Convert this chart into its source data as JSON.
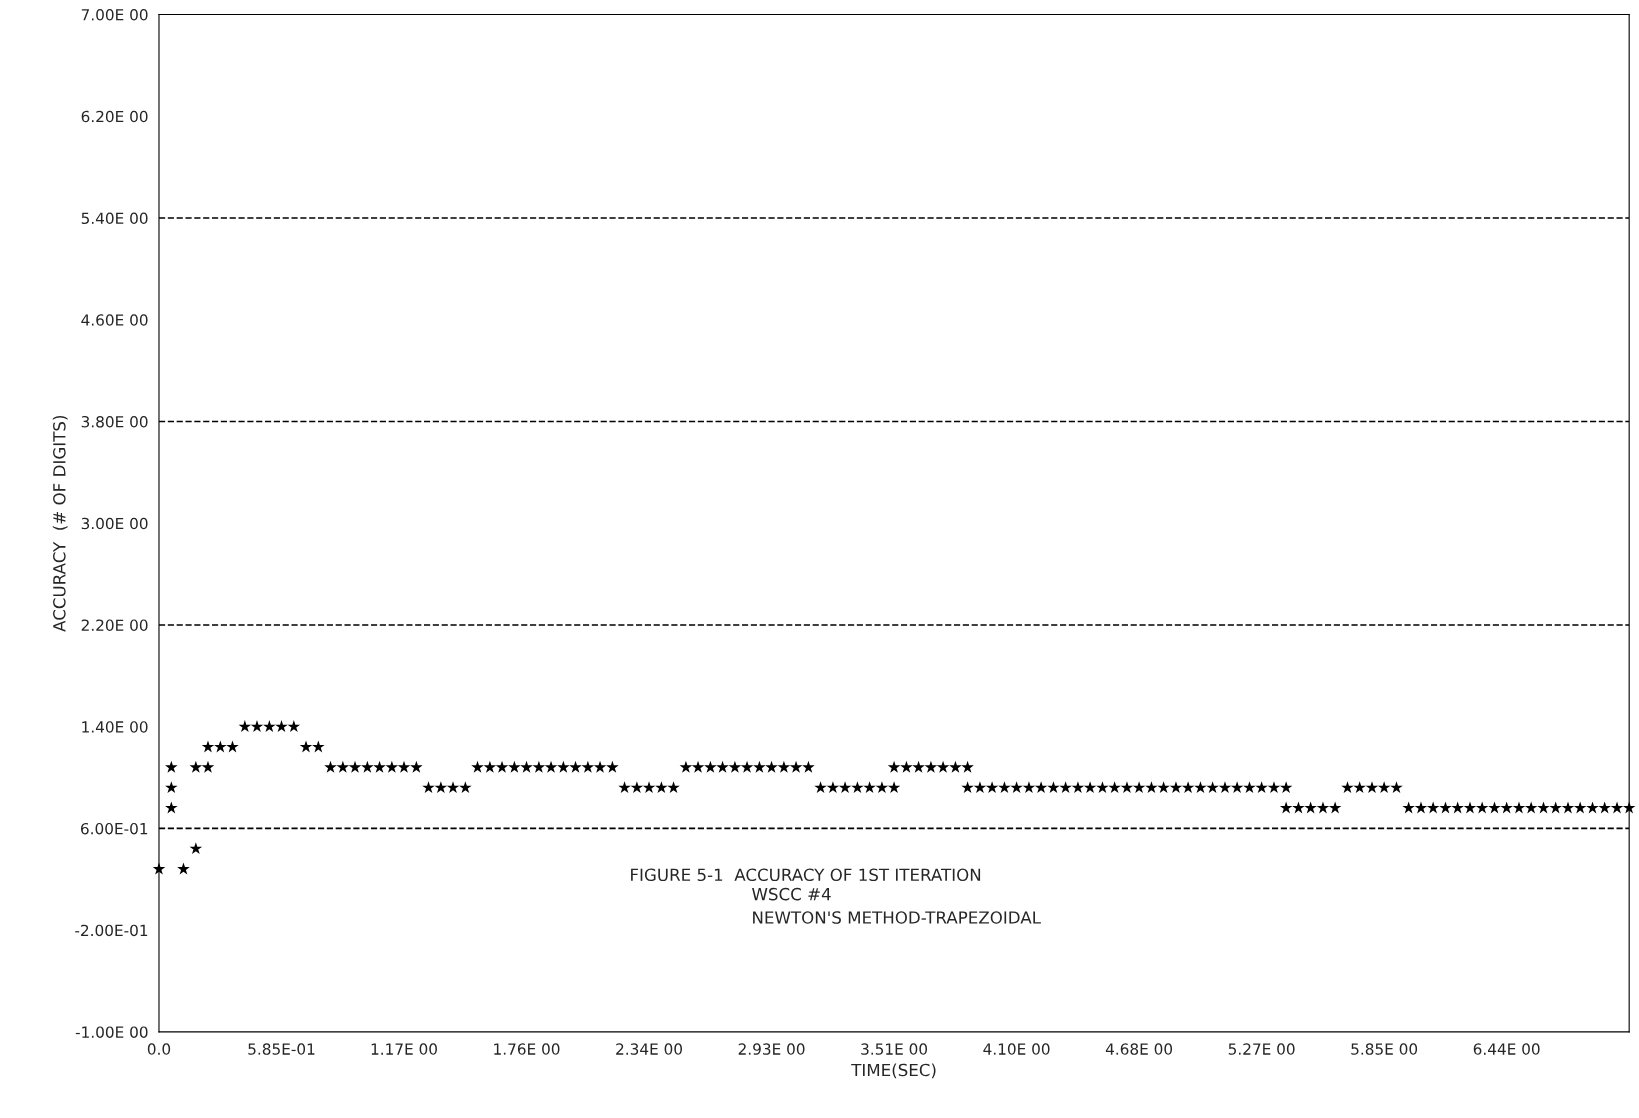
{
  "chart_data": {
    "type": "scatter",
    "xlabel": "TIME(SEC)",
    "ylabel": "ACCURACY  (# OF DIGITS)",
    "annotations": [
      "FIGURE 5-1  ACCURACY OF 1ST ITERATION",
      "WSCC #4",
      "NEWTON'S METHOD-TRAPEZOIDAL"
    ],
    "marker": "star",
    "grid": false,
    "legend": false,
    "xlim": [
      0,
      7.02
    ],
    "ylim": [
      -1.0,
      7.0
    ],
    "xticks": [
      {
        "value": 0,
        "label": "0.0"
      },
      {
        "value": 0.585,
        "label": "5.85E-01"
      },
      {
        "value": 1.17,
        "label": "1.17E 00"
      },
      {
        "value": 1.755,
        "label": "1.76E 00"
      },
      {
        "value": 2.34,
        "label": "2.34E 00"
      },
      {
        "value": 2.925,
        "label": "2.93E 00"
      },
      {
        "value": 3.51,
        "label": "3.51E 00"
      },
      {
        "value": 4.095,
        "label": "4.10E 00"
      },
      {
        "value": 4.68,
        "label": "4.68E 00"
      },
      {
        "value": 5.265,
        "label": "5.27E 00"
      },
      {
        "value": 5.85,
        "label": "5.85E 00"
      },
      {
        "value": 6.435,
        "label": "6.44E 00"
      }
    ],
    "yticks": [
      {
        "value": 7.0,
        "label": "7.00E 00"
      },
      {
        "value": 6.2,
        "label": "6.20E 00"
      },
      {
        "value": 5.4,
        "label": "5.40E 00"
      },
      {
        "value": 4.6,
        "label": "4.60E 00"
      },
      {
        "value": 3.8,
        "label": "3.80E 00"
      },
      {
        "value": 3.0,
        "label": "3.00E 00"
      },
      {
        "value": 2.2,
        "label": "2.20E 00"
      },
      {
        "value": 1.4,
        "label": "1.40E 00"
      },
      {
        "value": 0.6,
        "label": "6.00E-01"
      },
      {
        "value": -0.2,
        "label": "-2.00E-01"
      },
      {
        "value": -1.0,
        "label": "-1.00E 00"
      }
    ],
    "ref_lines": [
      {
        "axis": "y",
        "value": 5.4,
        "line_style": "dashed"
      },
      {
        "axis": "y",
        "value": 3.8,
        "line_style": "dashed"
      },
      {
        "axis": "y",
        "value": 2.2,
        "line_style": "dashed"
      },
      {
        "axis": "y",
        "value": 0.6,
        "line_style": "dashed"
      }
    ],
    "series": [
      {
        "color": "#000000",
        "x": [
          0,
          0.059,
          0.059,
          0.059,
          0.117,
          0.176,
          0.176,
          0.234,
          0.234,
          0.293,
          0.351,
          0.41,
          0.468,
          0.527,
          0.585,
          0.644,
          0.702,
          0.761,
          0.819,
          0.878,
          0.936,
          0.995,
          1.053,
          1.112,
          1.17,
          1.229,
          1.287,
          1.346,
          1.404,
          1.463,
          1.521,
          1.58,
          1.638,
          1.697,
          1.755,
          1.814,
          1.872,
          1.931,
          1.989,
          2.048,
          2.106,
          2.165,
          2.223,
          2.282,
          2.34,
          2.399,
          2.457,
          2.516,
          2.574,
          2.633,
          2.691,
          2.75,
          2.808,
          2.867,
          2.925,
          2.984,
          3.042,
          3.101,
          3.159,
          3.218,
          3.276,
          3.335,
          3.393,
          3.452,
          3.51,
          3.51,
          3.569,
          3.627,
          3.686,
          3.744,
          3.803,
          3.861,
          3.861,
          3.92,
          3.978,
          4.037,
          4.095,
          4.154,
          4.212,
          4.271,
          4.329,
          4.388,
          4.446,
          4.505,
          4.563,
          4.622,
          4.68,
          4.739,
          4.797,
          4.856,
          4.914,
          4.973,
          5.031,
          5.09,
          5.148,
          5.207,
          5.265,
          5.324,
          5.382,
          5.382,
          5.441,
          5.499,
          5.558,
          5.616,
          5.675,
          5.733,
          5.792,
          5.85,
          5.909,
          5.967,
          6.026,
          6.084,
          6.143,
          6.201,
          6.26,
          6.318,
          6.377,
          6.435,
          6.494,
          6.552,
          6.611,
          6.669,
          6.728,
          6.786,
          6.845,
          6.903,
          6.962,
          7.02
        ],
        "values": [
          0.28,
          1.08,
          0.92,
          0.76,
          0.28,
          1.08,
          0.44,
          1.24,
          1.08,
          1.24,
          1.24,
          1.4,
          1.4,
          1.4,
          1.4,
          1.4,
          1.24,
          1.24,
          1.08,
          1.08,
          1.08,
          1.08,
          1.08,
          1.08,
          1.08,
          1.08,
          0.92,
          0.92,
          0.92,
          0.92,
          1.08,
          1.08,
          1.08,
          1.08,
          1.08,
          1.08,
          1.08,
          1.08,
          1.08,
          1.08,
          1.08,
          1.08,
          0.92,
          0.92,
          0.92,
          0.92,
          0.92,
          1.08,
          1.08,
          1.08,
          1.08,
          1.08,
          1.08,
          1.08,
          1.08,
          1.08,
          1.08,
          1.08,
          0.92,
          0.92,
          0.92,
          0.92,
          0.92,
          0.92,
          0.92,
          1.08,
          1.08,
          1.08,
          1.08,
          1.08,
          1.08,
          1.08,
          0.92,
          0.92,
          0.92,
          0.92,
          0.92,
          0.92,
          0.92,
          0.92,
          0.92,
          0.92,
          0.92,
          0.92,
          0.92,
          0.92,
          0.92,
          0.92,
          0.92,
          0.92,
          0.92,
          0.92,
          0.92,
          0.92,
          0.92,
          0.92,
          0.92,
          0.92,
          0.92,
          0.76,
          0.76,
          0.76,
          0.76,
          0.76,
          0.92,
          0.92,
          0.92,
          0.92,
          0.92,
          0.76,
          0.76,
          0.76,
          0.76,
          0.76,
          0.76,
          0.76,
          0.76,
          0.76,
          0.76,
          0.76,
          0.76,
          0.76,
          0.76,
          0.76,
          0.76,
          0.76,
          0.76,
          0.76
        ]
      }
    ]
  }
}
